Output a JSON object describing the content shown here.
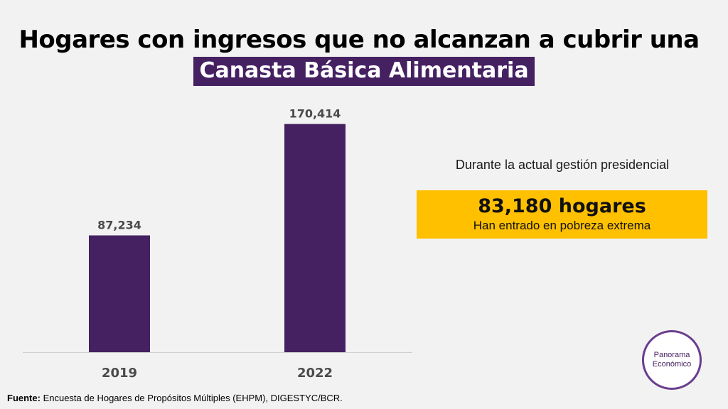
{
  "title": {
    "line1": "Hogares con ingresos que no alcanzan a cubrir una",
    "line2": "Canasta Básica Alimentaria"
  },
  "colors": {
    "bar": "#452162",
    "callout": "#ffc000",
    "highlight": "#452162"
  },
  "chart_data": {
    "type": "bar",
    "categories": [
      "2019",
      "2022"
    ],
    "values": [
      87234,
      170414
    ],
    "data_labels": [
      "87,234",
      "170,414"
    ],
    "ylim": [
      0,
      175000
    ],
    "grid": false,
    "legend": "none"
  },
  "side": {
    "heading": "Durante la actual gestión presidencial",
    "callout_big": "83,180 hogares",
    "callout_small": "Han entrado en pobreza extrema"
  },
  "source": {
    "label": "Fuente:",
    "text": " Encuesta de Hogares de Propósitos Múltiples (EHPM), DIGESTYC/BCR."
  },
  "logo": {
    "line1": "Panorama",
    "line2": "Económico",
    "icon": "panorama-economico-logo"
  }
}
